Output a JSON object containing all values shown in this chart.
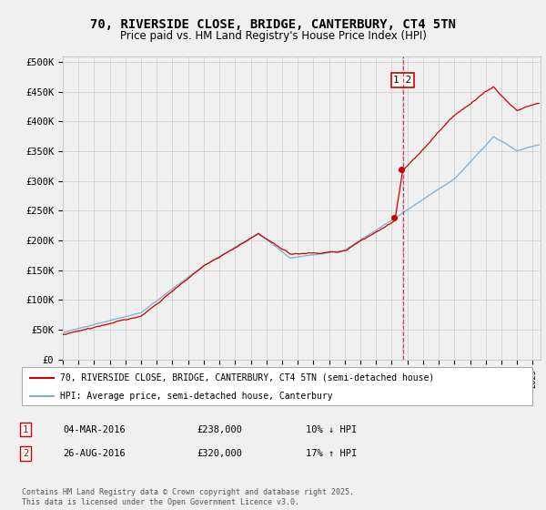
{
  "title": "70, RIVERSIDE CLOSE, BRIDGE, CANTERBURY, CT4 5TN",
  "subtitle": "Price paid vs. HM Land Registry's House Price Index (HPI)",
  "ylabel_ticks": [
    "£0",
    "£50K",
    "£100K",
    "£150K",
    "£200K",
    "£250K",
    "£300K",
    "£350K",
    "£400K",
    "£450K",
    "£500K"
  ],
  "ytick_values": [
    0,
    50000,
    100000,
    150000,
    200000,
    250000,
    300000,
    350000,
    400000,
    450000,
    500000
  ],
  "ylim": [
    0,
    510000
  ],
  "xlim_start": 1995.0,
  "xlim_end": 2025.5,
  "vline_x": 2016.7,
  "sale1_date": "04-MAR-2016",
  "sale1_price": "£238,000",
  "sale1_hpi": "10% ↓ HPI",
  "sale2_date": "26-AUG-2016",
  "sale2_price": "£320,000",
  "sale2_hpi": "17% ↑ HPI",
  "legend_line1": "70, RIVERSIDE CLOSE, BRIDGE, CANTERBURY, CT4 5TN (semi-detached house)",
  "legend_line2": "HPI: Average price, semi-detached house, Canterbury",
  "footer": "Contains HM Land Registry data © Crown copyright and database right 2025.\nThis data is licensed under the Open Government Licence v3.0.",
  "line_color_red": "#cc0000",
  "line_color_blue": "#7bafd4",
  "background_color": "#f0f0f0",
  "grid_color": "#cccccc",
  "title_fontsize": 10,
  "subtitle_fontsize": 8.5,
  "axis_fontsize": 7.5
}
